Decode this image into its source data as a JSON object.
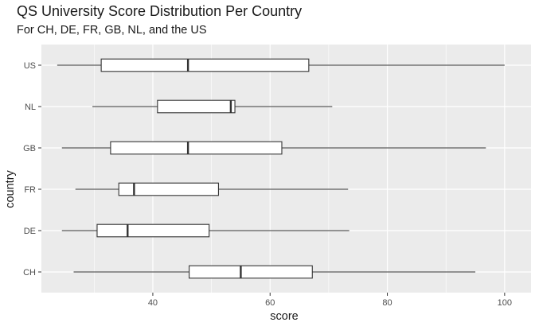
{
  "chart_data": {
    "type": "boxplot",
    "orientation": "horizontal",
    "title": "QS University Score Distribution Per Country",
    "subtitle": "For CH, DE, FR, GB, NL, and the US",
    "xlabel": "score",
    "ylabel": "country",
    "xlim": [
      21,
      104.5
    ],
    "x_ticks": [
      40,
      60,
      80,
      100
    ],
    "categories": [
      "CH",
      "DE",
      "FR",
      "GB",
      "NL",
      "US"
    ],
    "boxes": [
      {
        "category": "CH",
        "min": 26.5,
        "q1": 46.2,
        "median": 55.0,
        "q3": 67.2,
        "max": 95.0
      },
      {
        "category": "DE",
        "min": 24.5,
        "q1": 30.5,
        "median": 35.7,
        "q3": 49.6,
        "max": 73.5
      },
      {
        "category": "FR",
        "min": 26.8,
        "q1": 34.2,
        "median": 36.8,
        "q3": 51.2,
        "max": 73.3
      },
      {
        "category": "GB",
        "min": 24.5,
        "q1": 32.8,
        "median": 46.0,
        "q3": 62.0,
        "max": 96.8
      },
      {
        "category": "NL",
        "min": 29.7,
        "q1": 40.8,
        "median": 53.3,
        "q3": 54.0,
        "max": 70.6
      },
      {
        "category": "US",
        "min": 23.7,
        "q1": 31.2,
        "median": 46.0,
        "q3": 66.6,
        "max": 100.0
      }
    ],
    "grid": true,
    "colors": {
      "panel": "#ebebeb",
      "grid_major": "#ffffff",
      "box_fill": "#ffffff",
      "box_line": "#333333",
      "tick_text": "#4d4d4d"
    }
  }
}
